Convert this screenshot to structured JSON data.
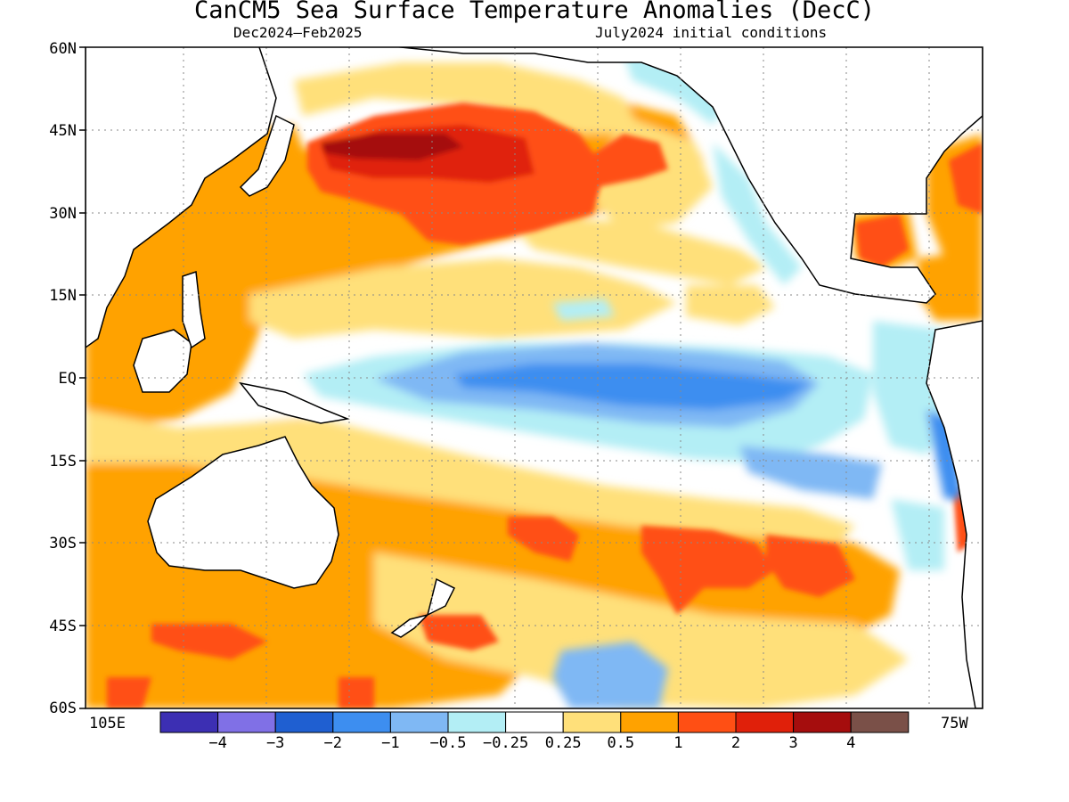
{
  "title": "CanCM5 Sea Surface Temperature Anomalies (DecC)",
  "subtitle_left": "Dec2024–Feb2025",
  "subtitle_right": "July2024 initial conditions",
  "lat_labels": [
    "60N",
    "45N",
    "30N",
    "15N",
    "EQ",
    "15S",
    "30S",
    "45S",
    "60S"
  ],
  "lon_labels": {
    "west": "105E",
    "east": "75W"
  },
  "legend": {
    "colors": [
      "#3c2fb3",
      "#8070e6",
      "#1f5fd1",
      "#3d8ef0",
      "#7fb8f4",
      "#b3eef5",
      "#ffffff",
      "#ffe07a",
      "#ffa200",
      "#ff4f14",
      "#e0200a",
      "#a50d0d",
      "#7a5048"
    ],
    "labels": [
      "−4",
      "−3",
      "−2",
      "−1",
      "−0.5",
      "−0.25",
      "0.25",
      "0.5",
      "1",
      "2",
      "3",
      "4"
    ]
  }
}
